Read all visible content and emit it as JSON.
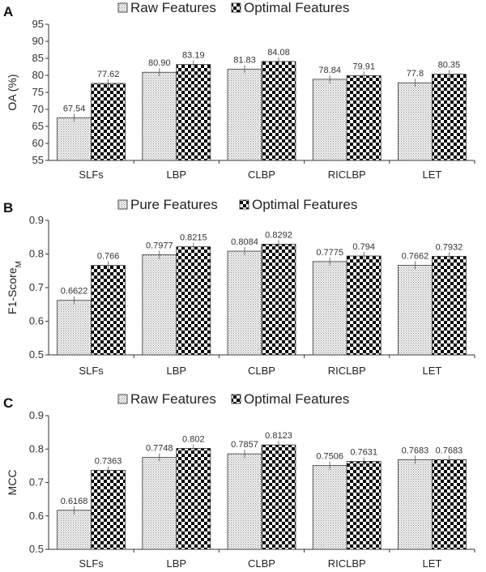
{
  "chart_data": [
    {
      "type": "bar",
      "panel": "A",
      "title": "",
      "ylabel": "OA (%)",
      "ylim": [
        55,
        95
      ],
      "yticks": [
        55,
        60,
        65,
        70,
        75,
        80,
        85,
        90,
        95
      ],
      "categories": [
        "SLFs",
        "LBP",
        "CLBP",
        "RICLBP",
        "LET"
      ],
      "series": [
        {
          "name": "Raw Features",
          "values": [
            67.54,
            80.9,
            81.83,
            78.84,
            77.8
          ],
          "labels": [
            "67.54",
            "80.90",
            "81.83",
            "78.84",
            "77.8"
          ]
        },
        {
          "name": "Optimal Features",
          "values": [
            77.62,
            83.19,
            84.08,
            79.91,
            80.35
          ],
          "labels": [
            "77.62",
            "83.19",
            "84.08",
            "79.91",
            "80.35"
          ]
        }
      ],
      "legend": "top"
    },
    {
      "type": "bar",
      "panel": "B",
      "title": "",
      "ylabel": "F1-Score",
      "ylabel_sub": "M",
      "ylim": [
        0.5,
        0.9
      ],
      "yticks": [
        0.5,
        0.6,
        0.7,
        0.8,
        0.9
      ],
      "categories": [
        "SLFs",
        "LBP",
        "CLBP",
        "RICLBP",
        "LET"
      ],
      "series": [
        {
          "name": "Pure Features",
          "values": [
            0.6622,
            0.7977,
            0.8084,
            0.7775,
            0.7662
          ],
          "labels": [
            "0.6622",
            "0.7977",
            "0.8084",
            "0.7775",
            "0.7662"
          ]
        },
        {
          "name": "Optimal Features",
          "values": [
            0.766,
            0.8215,
            0.8292,
            0.794,
            0.7932
          ],
          "labels": [
            "0.766",
            "0.8215",
            "0.8292",
            "0.794",
            "0.7932"
          ]
        }
      ],
      "legend": "top"
    },
    {
      "type": "bar",
      "panel": "C",
      "title": "",
      "ylabel": "MCC",
      "ylim": [
        0.5,
        0.9
      ],
      "yticks": [
        0.5,
        0.6,
        0.7,
        0.8,
        0.9
      ],
      "categories": [
        "SLFs",
        "LBP",
        "CLBP",
        "RICLBP",
        "LET"
      ],
      "series": [
        {
          "name": "Raw Features",
          "values": [
            0.6168,
            0.7748,
            0.7857,
            0.7506,
            0.7683
          ],
          "labels": [
            "0.6168",
            "0.7748",
            "0.7857",
            "0.7506",
            "0.7683"
          ]
        },
        {
          "name": "Optimal Features",
          "values": [
            0.7363,
            0.802,
            0.8123,
            0.7631,
            0.7683
          ],
          "labels": [
            "0.7363",
            "0.802",
            "0.8123",
            "0.7631",
            "0.7683"
          ]
        }
      ],
      "legend": "top"
    }
  ]
}
